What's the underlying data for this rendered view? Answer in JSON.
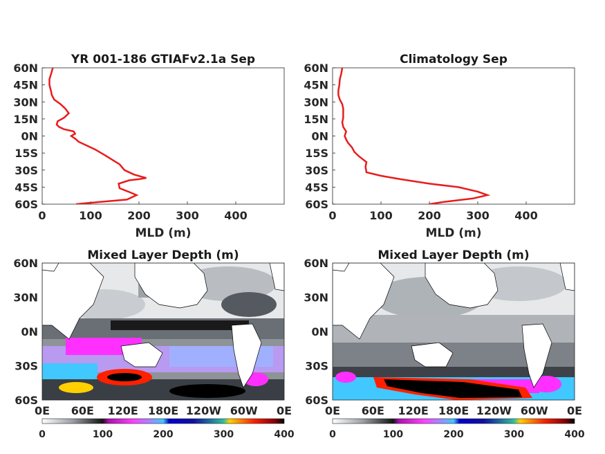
{
  "chart_data": [
    {
      "type": "line",
      "title": "YR 001-186 GTIAFv2.1a Sep",
      "xlabel": "MLD (m)",
      "ylabel": "",
      "xlim": [
        0,
        500
      ],
      "ylim": [
        -60,
        60
      ],
      "x_ticks": [
        "0",
        "100",
        "200",
        "300",
        "400"
      ],
      "y_ticks": [
        "60N",
        "45N",
        "30N",
        "15N",
        "0N",
        "15S",
        "30S",
        "45S",
        "60S"
      ],
      "series": [
        {
          "color": "#e81c1c",
          "points": [
            [
              70,
              -60
            ],
            [
              120,
              -58
            ],
            [
              175,
              -56
            ],
            [
              195,
              -52
            ],
            [
              178,
              -49
            ],
            [
              160,
              -46
            ],
            [
              158,
              -42
            ],
            [
              180,
              -39
            ],
            [
              200,
              -38
            ],
            [
              215,
              -37
            ],
            [
              190,
              -34
            ],
            [
              170,
              -30
            ],
            [
              160,
              -25
            ],
            [
              130,
              -17
            ],
            [
              110,
              -12
            ],
            [
              90,
              -8
            ],
            [
              75,
              -5
            ],
            [
              70,
              -3
            ],
            [
              60,
              0
            ],
            [
              68,
              2
            ],
            [
              65,
              4
            ],
            [
              45,
              6
            ],
            [
              35,
              8
            ],
            [
              30,
              10
            ],
            [
              32,
              13
            ],
            [
              45,
              16
            ],
            [
              55,
              20
            ],
            [
              48,
              24
            ],
            [
              38,
              28
            ],
            [
              25,
              32
            ],
            [
              20,
              36
            ],
            [
              18,
              40
            ],
            [
              15,
              45
            ],
            [
              15,
              50
            ],
            [
              18,
              54
            ],
            [
              20,
              57
            ],
            [
              22,
              60
            ]
          ]
        }
      ]
    },
    {
      "type": "line",
      "title": "Climatology Sep",
      "xlabel": "MLD (m)",
      "ylabel": "",
      "xlim": [
        0,
        500
      ],
      "ylim": [
        -60,
        60
      ],
      "x_ticks": [
        "0",
        "100",
        "200",
        "300",
        "400"
      ],
      "y_ticks": [
        "60N",
        "45N",
        "30N",
        "15N",
        "0N",
        "15S",
        "30S",
        "45S",
        "60S"
      ],
      "series": [
        {
          "color": "#e81c1c",
          "points": [
            [
              200,
              -60
            ],
            [
              230,
              -58
            ],
            [
              290,
              -55
            ],
            [
              320,
              -52
            ],
            [
              300,
              -49
            ],
            [
              260,
              -45
            ],
            [
              200,
              -42
            ],
            [
              140,
              -38
            ],
            [
              100,
              -35
            ],
            [
              70,
              -32
            ],
            [
              68,
              -27
            ],
            [
              70,
              -23
            ],
            [
              55,
              -18
            ],
            [
              45,
              -14
            ],
            [
              40,
              -10
            ],
            [
              32,
              -6
            ],
            [
              28,
              -3
            ],
            [
              25,
              0
            ],
            [
              28,
              4
            ],
            [
              22,
              8
            ],
            [
              20,
              12
            ],
            [
              22,
              16
            ],
            [
              22,
              20
            ],
            [
              22,
              24
            ],
            [
              20,
              28
            ],
            [
              15,
              32
            ],
            [
              12,
              36
            ],
            [
              12,
              40
            ],
            [
              14,
              45
            ],
            [
              15,
              50
            ],
            [
              18,
              55
            ],
            [
              20,
              60
            ]
          ]
        }
      ]
    },
    {
      "type": "heatmap",
      "title": "Mixed Layer Depth (m)",
      "x_ticks": [
        "0E",
        "60E",
        "120E",
        "180E",
        "120W",
        "60W",
        "0E"
      ],
      "y_ticks": [
        "60N",
        "30N",
        "0N",
        "30S",
        "60S"
      ],
      "colorbar_ticks": [
        "0",
        "100",
        "200",
        "300",
        "400"
      ],
      "value_range": [
        0,
        400
      ]
    },
    {
      "type": "heatmap",
      "title": "Mixed Layer Depth (m)",
      "x_ticks": [
        "0E",
        "60E",
        "120E",
        "180E",
        "120W",
        "60W",
        "0E"
      ],
      "y_ticks": [
        "60N",
        "30N",
        "0N",
        "30S",
        "60S"
      ],
      "colorbar_ticks": [
        "0",
        "100",
        "200",
        "300",
        "400"
      ],
      "value_range": [
        0,
        400
      ]
    }
  ],
  "colormap": {
    "stops": [
      {
        "v": 0,
        "color": "#ffffff"
      },
      {
        "v": 50,
        "color": "#9aa0a6"
      },
      {
        "v": 100,
        "color": "#141414"
      },
      {
        "v": 110,
        "color": "#b010b0"
      },
      {
        "v": 150,
        "color": "#ff40ff"
      },
      {
        "v": 175,
        "color": "#b080ff"
      },
      {
        "v": 200,
        "color": "#40c8ff"
      },
      {
        "v": 210,
        "color": "#0000d0"
      },
      {
        "v": 250,
        "color": "#1010a0"
      },
      {
        "v": 300,
        "color": "#30c0a0"
      },
      {
        "v": 310,
        "color": "#ffd000"
      },
      {
        "v": 350,
        "color": "#ff2000"
      },
      {
        "v": 385,
        "color": "#800000"
      },
      {
        "v": 400,
        "color": "#000000"
      }
    ]
  }
}
